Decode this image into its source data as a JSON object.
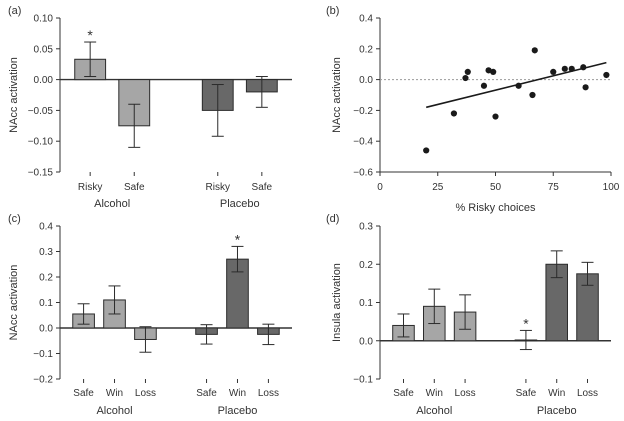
{
  "colors": {
    "alcohol_bar": "#a6a6a6",
    "placebo_bar": "#686868",
    "axis": "#333333",
    "refline": "#999999",
    "point": "#1a1a1a"
  },
  "chart_data": [
    {
      "id": "a",
      "panel_label": "(a)",
      "type": "bar",
      "ylabel": "NAcc activation",
      "ylim": [
        -0.15,
        0.1
      ],
      "yticks": [
        0.1,
        0.05,
        0.0,
        -0.05,
        -0.1,
        -0.15
      ],
      "ytick_labels": [
        "0.10",
        "0.05",
        "0.00",
        "−0.05",
        "−0.10",
        "−0.15"
      ],
      "groups": [
        {
          "name": "Alcohol",
          "bars": [
            {
              "label": "Risky",
              "value": 0.033,
              "error": 0.028,
              "star": "*"
            },
            {
              "label": "Safe",
              "value": -0.075,
              "error": 0.035,
              "star": ""
            }
          ]
        },
        {
          "name": "Placebo",
          "bars": [
            {
              "label": "Risky",
              "value": -0.05,
              "error": 0.042,
              "star": ""
            },
            {
              "label": "Safe",
              "value": -0.02,
              "error": 0.025,
              "star": ""
            }
          ]
        }
      ]
    },
    {
      "id": "b",
      "panel_label": "(b)",
      "type": "scatter",
      "xlabel": "% Risky choices",
      "ylabel": "NAcc activation",
      "xlim": [
        0,
        100
      ],
      "ylim": [
        -0.6,
        0.4
      ],
      "xticks": [
        0,
        25,
        50,
        75,
        100
      ],
      "xtick_labels": [
        "0",
        "25",
        "50",
        "75",
        "100"
      ],
      "yticks": [
        0.4,
        0.2,
        0.0,
        -0.2,
        -0.4,
        -0.6
      ],
      "ytick_labels": [
        "0.4",
        "0.2",
        "0.0",
        "−0.2",
        "−0.4",
        "−0.6"
      ],
      "points": [
        {
          "x": 20,
          "y": -0.46
        },
        {
          "x": 32,
          "y": -0.22
        },
        {
          "x": 37,
          "y": 0.01
        },
        {
          "x": 38,
          "y": 0.05
        },
        {
          "x": 45,
          "y": -0.04
        },
        {
          "x": 47,
          "y": 0.06
        },
        {
          "x": 49,
          "y": 0.05
        },
        {
          "x": 50,
          "y": -0.24
        },
        {
          "x": 60,
          "y": -0.04
        },
        {
          "x": 66,
          "y": -0.1
        },
        {
          "x": 67,
          "y": 0.19
        },
        {
          "x": 75,
          "y": 0.05
        },
        {
          "x": 80,
          "y": 0.07
        },
        {
          "x": 83,
          "y": 0.07
        },
        {
          "x": 88,
          "y": 0.08
        },
        {
          "x": 89,
          "y": -0.05
        },
        {
          "x": 98,
          "y": 0.03
        }
      ],
      "fit": {
        "x": [
          20,
          98
        ],
        "y": [
          -0.18,
          0.11
        ]
      }
    },
    {
      "id": "c",
      "panel_label": "(c)",
      "type": "bar",
      "ylabel": "NAcc activation",
      "ylim": [
        -0.2,
        0.4
      ],
      "yticks": [
        0.4,
        0.3,
        0.2,
        0.1,
        0.0,
        -0.1,
        -0.2
      ],
      "ytick_labels": [
        "0.4",
        "0.3",
        "0.2",
        "0.1",
        "0.0",
        "−0.1",
        "−0.2"
      ],
      "groups": [
        {
          "name": "Alcohol",
          "bars": [
            {
              "label": "Safe",
              "value": 0.055,
              "error": 0.04,
              "star": ""
            },
            {
              "label": "Win",
              "value": 0.11,
              "error": 0.055,
              "star": ""
            },
            {
              "label": "Loss",
              "value": -0.045,
              "error": 0.05,
              "star": ""
            }
          ]
        },
        {
          "name": "Placebo",
          "bars": [
            {
              "label": "Safe",
              "value": -0.025,
              "error": 0.038,
              "star": ""
            },
            {
              "label": "Win",
              "value": 0.27,
              "error": 0.05,
              "star": "*"
            },
            {
              "label": "Loss",
              "value": -0.025,
              "error": 0.04,
              "star": ""
            }
          ]
        }
      ]
    },
    {
      "id": "d",
      "panel_label": "(d)",
      "type": "bar",
      "ylabel": "Insula activation",
      "ylim": [
        -0.1,
        0.3
      ],
      "yticks": [
        0.3,
        0.2,
        0.1,
        0.0,
        -0.1
      ],
      "ytick_labels": [
        "0.3",
        "0.2",
        "0.1",
        "0.0",
        "−0.1"
      ],
      "groups": [
        {
          "name": "Alcohol",
          "bars": [
            {
              "label": "Safe",
              "value": 0.04,
              "error": 0.03,
              "star": ""
            },
            {
              "label": "Win",
              "value": 0.09,
              "error": 0.045,
              "star": ""
            },
            {
              "label": "Loss",
              "value": 0.075,
              "error": 0.045,
              "star": ""
            }
          ]
        },
        {
          "name": "Placebo",
          "bars": [
            {
              "label": "Safe",
              "value": 0.002,
              "error": 0.025,
              "star": "*"
            },
            {
              "label": "Win",
              "value": 0.2,
              "error": 0.035,
              "star": ""
            },
            {
              "label": "Loss",
              "value": 0.175,
              "error": 0.03,
              "star": ""
            }
          ]
        }
      ]
    }
  ]
}
